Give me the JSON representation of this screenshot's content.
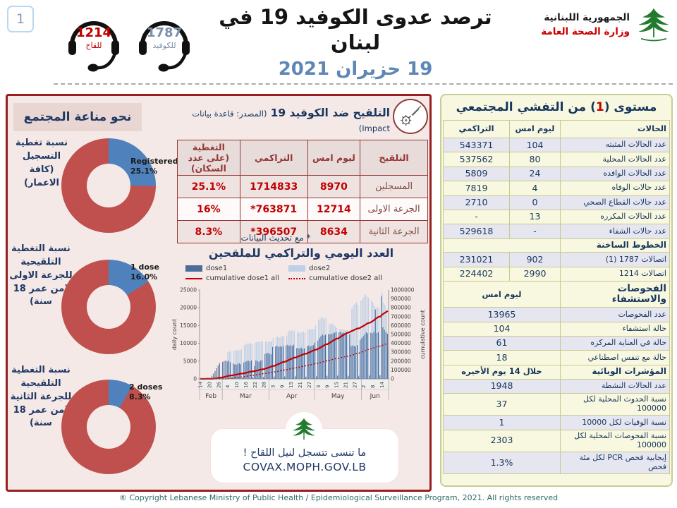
{
  "header": {
    "page_number": "1",
    "hotlines": [
      {
        "number": "1214",
        "label": "للقاح",
        "color": "#C00000"
      },
      {
        "number": "1787",
        "label": "للكوفيد",
        "color": "#7C90AC"
      }
    ],
    "title": "ترصد عدوى الكوفيد 19 في لبنان",
    "date": "19 حزيران 2021",
    "ministry": {
      "line1": "الجمهورية اللبنانية",
      "line2": "وزارة الصحة العامة"
    }
  },
  "immunity_panel": {
    "title": "نحو مناعة المجتمع",
    "colors": {
      "filled": "#C0504D",
      "slice": "#4F81BD"
    },
    "donuts": [
      {
        "label": "نسبة تغطية التسجيل (كافة الاعمار)",
        "series": "Registered",
        "percent": 25.1,
        "percent_label": "25.1%"
      },
      {
        "label": "نسبة التغطية التلقيحية للجرعة الاولى (من عمر 18 سنة)",
        "series": "1 dose",
        "percent": 16.0,
        "percent_label": "16.0%"
      },
      {
        "label": "نسبة التغطية التلقيحية للجرعة الثانية (من عمر 18 سنة)",
        "series": "2 doses",
        "percent": 8.3,
        "percent_label": "8.3%"
      }
    ]
  },
  "vaccination": {
    "title_bold": "التلقيح ضد الكوفيد 19",
    "title_source": "(المصدر: قاعدة بيانات Impact)",
    "table": {
      "headers": [
        "التلقيح",
        "ليوم امس",
        "التراكمي",
        "التغطية (على عدد السكان)"
      ],
      "rows": [
        {
          "label": "المسجلين",
          "yesterday": "8970",
          "cumulative": "1714833",
          "coverage": "25.1%"
        },
        {
          "label": "الجرعة الاولى",
          "yesterday": "12714",
          "cumulative": "*763871",
          "coverage": "16%"
        },
        {
          "label": "الجرعة الثانية",
          "yesterday": "8634",
          "cumulative": "*396507",
          "coverage": "8.3%"
        }
      ]
    },
    "footnote": "* مع تحديث البيانات"
  },
  "chart_data": {
    "type": "bar+line",
    "title": "العدد اليومي والتراكمي للملقحين",
    "ylabel_left": "daily count",
    "ylabel_right": "cumulative count",
    "ylim_left": [
      0,
      25000
    ],
    "ytick_step_left": 5000,
    "ylim_right": [
      0,
      1000000
    ],
    "ytick_step_right": 100000,
    "legend": [
      "dose1",
      "dose2",
      "cumulative dose1 all",
      "cumulative dose2 all"
    ],
    "colors": {
      "dose1": "#4A6D9B",
      "dose2": "#BDD0E7",
      "cumulative": "#C00000"
    },
    "x_start_date": "Feb 14",
    "x_tick_labels": [
      "14",
      "20",
      "26",
      "4",
      "10",
      "16",
      "22",
      "28",
      "3",
      "9",
      "15",
      "21",
      "27",
      "3",
      "9",
      "15",
      "21",
      "27",
      "2",
      "8",
      "14"
    ],
    "x_tick_day_indices": [
      0,
      6,
      12,
      18,
      24,
      30,
      36,
      42,
      48,
      54,
      60,
      66,
      72,
      78,
      84,
      90,
      96,
      102,
      108,
      114,
      120
    ],
    "month_labels": [
      "Feb",
      "Mar",
      "Apr",
      "May",
      "Jun"
    ],
    "month_boundaries_days": [
      [
        0,
        14
      ],
      [
        15,
        45
      ],
      [
        46,
        75
      ],
      [
        76,
        106
      ],
      [
        107,
        124
      ]
    ],
    "series": {
      "cumulative_dose1_total": 763871,
      "cumulative_dose2_total": 396507,
      "dose1_daily": [
        30,
        80,
        120,
        160,
        200,
        260,
        320,
        60,
        900,
        1500,
        2200,
        3000,
        3800,
        4400,
        300,
        4800,
        5000,
        5200,
        4900,
        5100,
        4700,
        350,
        4300,
        4100,
        4000,
        4200,
        4400,
        4100,
        300,
        4600,
        4800,
        5000,
        5100,
        4900,
        5200,
        400,
        3600,
        5200,
        5000,
        4800,
        5100,
        5300,
        450,
        7000,
        7200,
        7300,
        7100,
        6900,
        9000,
        600,
        9100,
        9300,
        8900,
        9200,
        9000,
        9300,
        650,
        9400,
        9600,
        9300,
        9500,
        9200,
        9600,
        700,
        8700,
        8500,
        8600,
        8800,
        8400,
        8600,
        600,
        9200,
        9400,
        9100,
        9300,
        9500,
        10200,
        700,
        10800,
        11500,
        12000,
        12500,
        12200,
        12400,
        800,
        12600,
        12500,
        12700,
        12800,
        13000,
        13200,
        900,
        13100,
        13300,
        12900,
        13000,
        12800,
        13100,
        850,
        12600,
        9200,
        9400,
        9300,
        9100,
        9500,
        700,
        11000,
        11500,
        12000,
        12500,
        13100,
        12800,
        900,
        13000,
        12800,
        13200,
        19500,
        12900,
        13100,
        1000,
        23300,
        14500,
        13800,
        13200,
        12714
      ],
      "dose2_daily": [
        0,
        0,
        0,
        0,
        0,
        0,
        0,
        0,
        0,
        0,
        0,
        0,
        0,
        0,
        0,
        0,
        0,
        0,
        7500,
        7800,
        7600,
        500,
        7900,
        8000,
        8100,
        8200,
        8000,
        8300,
        600,
        9500,
        9800,
        10000,
        9900,
        10100,
        9800,
        700,
        10200,
        10400,
        10300,
        10500,
        10400,
        10600,
        700,
        10500,
        10300,
        10600,
        10400,
        10700,
        11500,
        800,
        11700,
        11900,
        11600,
        11800,
        12000,
        12100,
        800,
        12200,
        13400,
        13600,
        13500,
        13700,
        13400,
        900,
        13000,
        13200,
        12900,
        13100,
        13300,
        13000,
        900,
        13800,
        14000,
        13900,
        14100,
        14000,
        15000,
        1000,
        16500,
        17000,
        17300,
        17100,
        16800,
        17200,
        1100,
        15500,
        15300,
        15600,
        15200,
        14800,
        14300,
        1000,
        14000,
        13800,
        14100,
        13700,
        13600,
        13800,
        900,
        13500,
        19700,
        20500,
        21000,
        21600,
        20800,
        1200,
        22000,
        22500,
        23000,
        23800,
        23200,
        22800,
        1300,
        22000,
        21500,
        20500,
        19800,
        20200,
        19900,
        1100,
        24300,
        21500,
        20800,
        19500,
        8634
      ]
    }
  },
  "covax": {
    "line1": "ما تنسى تتسجل لنيل اللقاح !",
    "line2": "COVAX.MOPH.GOV.LB"
  },
  "outbreak_panel": {
    "title_prefix": "مستوى (",
    "level": "1",
    "title_suffix": ") من التفشي المجتمعي",
    "rows": [
      {
        "type": "header",
        "label": "الحالات",
        "yesterday": "ليوم امس",
        "cumulative": "التراكمي"
      },
      {
        "type": "data",
        "label": "عدد الحالات المثبته",
        "yesterday": "104",
        "cumulative": "543371"
      },
      {
        "type": "data",
        "label": "عدد الحالات المحلية",
        "yesterday": "80",
        "cumulative": "537562"
      },
      {
        "type": "data",
        "label": "عدد الحالات الوافده",
        "yesterday": "24",
        "cumulative": "5809"
      },
      {
        "type": "data",
        "label": "عدد حالات الوفاه",
        "yesterday": "4",
        "cumulative": "7819"
      },
      {
        "type": "data",
        "label": "عدد حالات القطاع الصحي",
        "yesterday": "0",
        "cumulative": "2710"
      },
      {
        "type": "data",
        "label": "عدد الحالات المكرره",
        "yesterday": "13",
        "cumulative": "-"
      },
      {
        "type": "data",
        "label": "عدد حالات الشفاء",
        "yesterday": "-",
        "cumulative": "529618"
      },
      {
        "type": "section",
        "label": "الخطوط الساخنة",
        "span": ""
      },
      {
        "type": "data",
        "label": "اتصالات 1787 (1)",
        "yesterday": "902",
        "cumulative": "231021"
      },
      {
        "type": "data",
        "label": "اتصالات 1214",
        "yesterday": "2990",
        "cumulative": "224402"
      },
      {
        "type": "section",
        "label": "الفحوصات والاستشفاء",
        "span": "ليوم امس",
        "big": true
      },
      {
        "type": "merged",
        "label": "عدد الفحوصات",
        "value": "13965"
      },
      {
        "type": "merged",
        "label": "حالة استشفاء",
        "value": "104"
      },
      {
        "type": "merged",
        "label": "حالة في العناية المركزه",
        "value": "61"
      },
      {
        "type": "merged",
        "label": "حالة مع تنفس اصطناعي",
        "value": "18"
      },
      {
        "type": "section",
        "label": "المؤشرات الوبائية",
        "span": "خلال 14 يوم الأخيره"
      },
      {
        "type": "merged",
        "label": "عدد الحالات النشطة",
        "value": "1948"
      },
      {
        "type": "merged",
        "label": "نسبة الحدوث المحلية لكل 100000",
        "value": "37"
      },
      {
        "type": "merged",
        "label": "نسبة الوفيات لكل 10000",
        "value": "1"
      },
      {
        "type": "merged",
        "label": "نسبة الفحوصات المحلية لكل 100000",
        "value": "2303"
      },
      {
        "type": "merged",
        "label": "إيجابية فحص PCR لكل مئة فحص",
        "value": "1.3%"
      }
    ]
  },
  "footer": "® Copyright Lebanese Ministry of Public Health / Epidemiological Surveillance Program, 2021. All rights reserved",
  "theme": {
    "border_red": "#9A1E1E",
    "panel_pink": "#F4E9E7",
    "panel_cream": "#F8F8E0",
    "navy": "#17365D",
    "number_red": "#C00000",
    "maroon": "#943634"
  }
}
